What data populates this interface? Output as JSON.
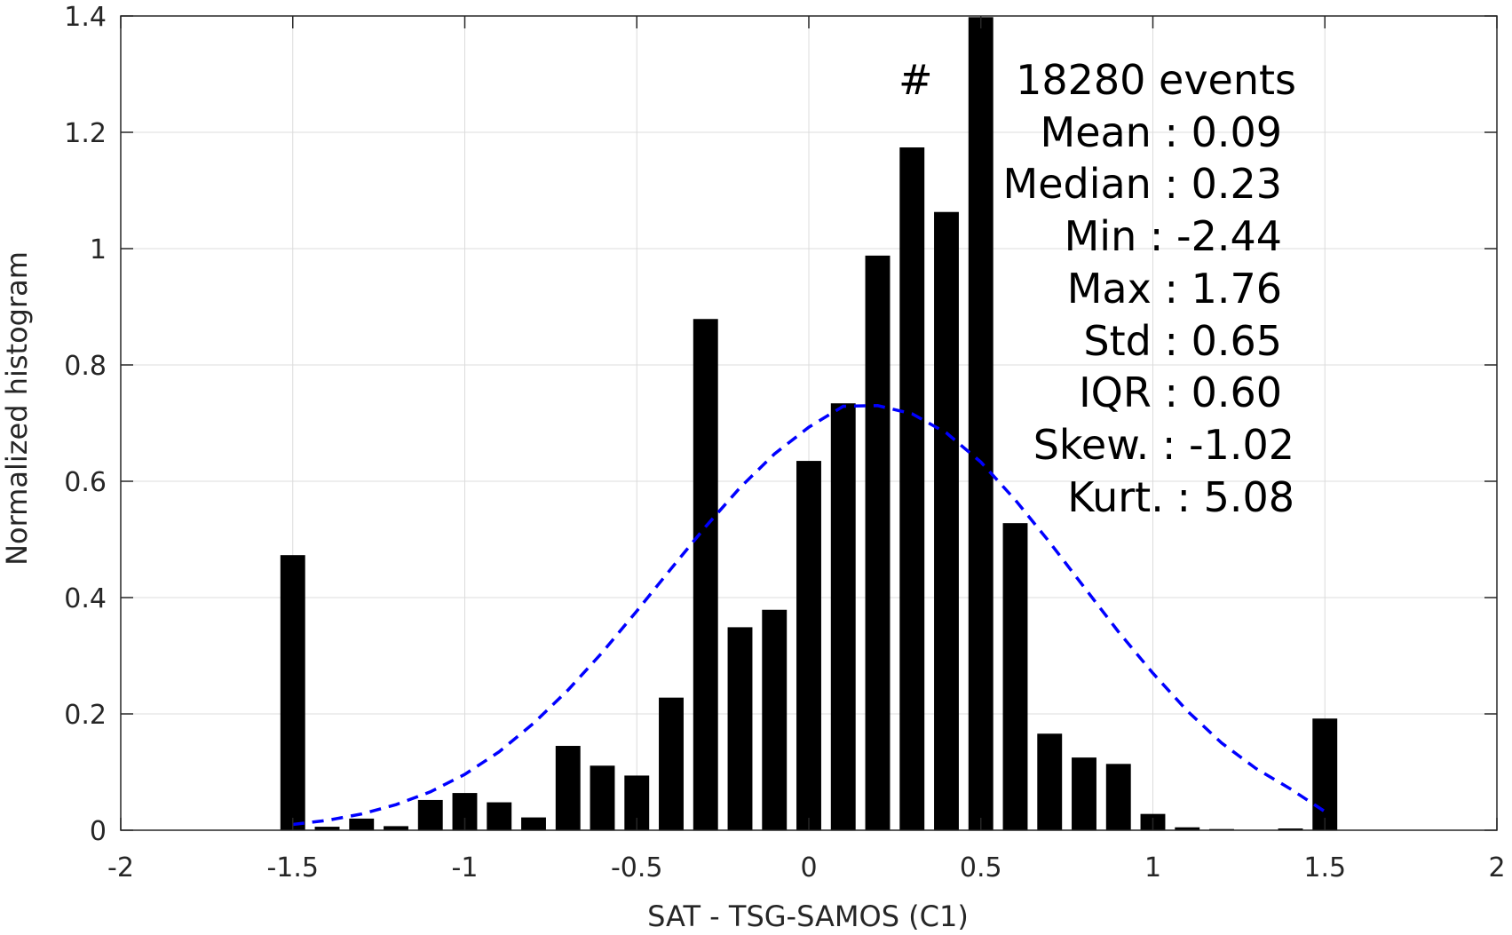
{
  "chart_data": {
    "type": "bar",
    "xlabel": "SAT - TSG-SAMOS (C1)",
    "ylabel": "Normalized histogram",
    "xlim": [
      -2,
      2
    ],
    "ylim": [
      0,
      1.4
    ],
    "grid": true,
    "bar_color": "#000000",
    "xticks": [
      "-2",
      "-1.5",
      "-1",
      "-0.5",
      "0",
      "0.5",
      "1",
      "1.5",
      "2"
    ],
    "yticks": [
      "0",
      "0.2",
      "0.4",
      "0.6",
      "0.8",
      "1",
      "1.2",
      "1.4"
    ],
    "x": [
      -1.5,
      -1.4,
      -1.3,
      -1.2,
      -1.1,
      -1.0,
      -0.9,
      -0.8,
      -0.7,
      -0.6,
      -0.5,
      -0.4,
      -0.3,
      -0.2,
      -0.1,
      0.0,
      0.1,
      0.2,
      0.3,
      0.4,
      0.5,
      0.6,
      0.7,
      0.8,
      0.9,
      1.0,
      1.1,
      1.2,
      1.3,
      1.4,
      1.5
    ],
    "values": [
      0.473,
      0.006,
      0.02,
      0.007,
      0.052,
      0.064,
      0.048,
      0.022,
      0.145,
      0.111,
      0.094,
      0.228,
      0.879,
      0.349,
      0.379,
      0.635,
      0.734,
      0.988,
      1.174,
      1.063,
      1.398,
      0.528,
      0.166,
      0.125,
      0.114,
      0.028,
      0.005,
      0.002,
      0.0,
      0.003,
      0.192
    ],
    "fit": {
      "type": "normal",
      "color": "#0000ff",
      "style": "dashed",
      "x": [
        -1.5,
        -1.4,
        -1.3,
        -1.2,
        -1.1,
        -1.0,
        -0.9,
        -0.8,
        -0.7,
        -0.6,
        -0.5,
        -0.4,
        -0.3,
        -0.2,
        -0.1,
        0.0,
        0.1,
        0.2,
        0.3,
        0.4,
        0.5,
        0.6,
        0.7,
        0.8,
        0.9,
        1.0,
        1.1,
        1.2,
        1.3,
        1.4,
        1.5
      ],
      "values": [
        0.01,
        0.017,
        0.028,
        0.044,
        0.066,
        0.096,
        0.135,
        0.184,
        0.241,
        0.306,
        0.377,
        0.45,
        0.522,
        0.589,
        0.647,
        0.693,
        0.729,
        0.73,
        0.716,
        0.683,
        0.633,
        0.568,
        0.495,
        0.418,
        0.341,
        0.27,
        0.205,
        0.15,
        0.106,
        0.071,
        0.032
      ]
    },
    "annotations": [
      "#",
      "18280 events",
      "Mean : 0.09",
      "Median : 0.23",
      "Min : -2.44",
      "Max : 1.76",
      "Std : 0.65",
      "IQR : 0.60",
      "Skew. : -1.02",
      "Kurt. : 5.08"
    ]
  }
}
